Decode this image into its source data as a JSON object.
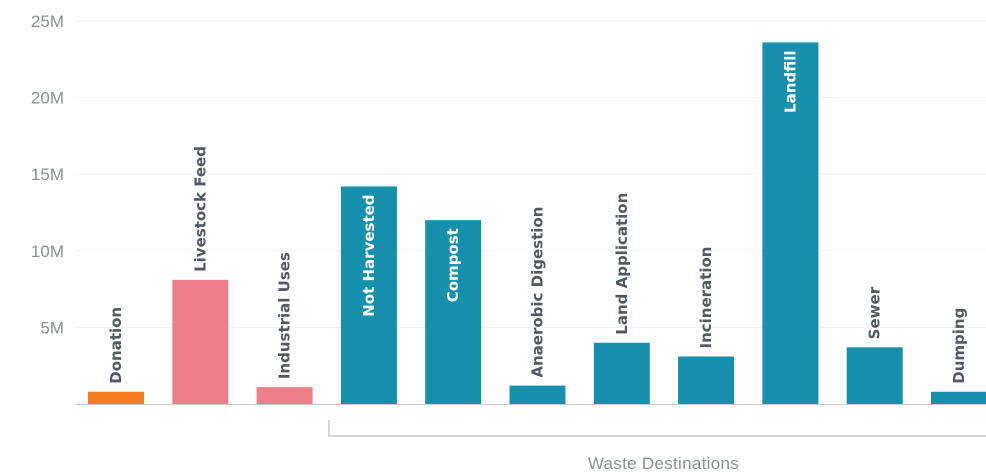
{
  "chart_data": {
    "type": "bar",
    "categories": [
      "Donation",
      "Livestock Feed",
      "Industrial Uses",
      "Not Harvested",
      "Compost",
      "Anaerobic Digestion",
      "Land Application",
      "Incineration",
      "Landfill",
      "Sewer",
      "Dumping"
    ],
    "values": [
      0.8,
      8.1,
      1.1,
      14.2,
      12.0,
      1.2,
      4.0,
      3.1,
      23.6,
      3.7,
      0.8
    ],
    "ylim": [
      0,
      25
    ],
    "yticks": [
      5,
      10,
      15,
      20,
      25
    ],
    "ytick_labels": [
      "5M",
      "10M",
      "15M",
      "20M",
      "25M"
    ],
    "label_inside": [
      false,
      false,
      false,
      true,
      true,
      false,
      false,
      false,
      true,
      false,
      false
    ],
    "colors": {
      "donation": "#f37b1d",
      "recovery": "#ee7f8a",
      "waste": "#1690ad",
      "inside_label": "#ffffff",
      "outside_label": "#4f5a66",
      "axis": "#c9ccd0",
      "grid": "#f1f2f3",
      "tick_text": "#8a8f96"
    },
    "bar_colors": [
      "donation",
      "recovery",
      "recovery",
      "waste",
      "waste",
      "waste",
      "waste",
      "waste",
      "waste",
      "waste",
      "waste"
    ],
    "group": {
      "label": "Waste Destinations",
      "first_index": 3,
      "last_index": 10
    },
    "grid": true
  }
}
